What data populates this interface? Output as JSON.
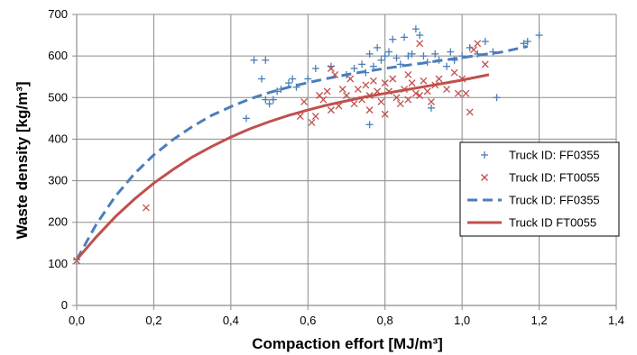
{
  "chart_data": {
    "type": "scatter",
    "xlabel": "Compaction effort  [MJ/m³]",
    "ylabel": "Waste density [kg/m³]",
    "xlim": [
      0,
      1.4
    ],
    "ylim": [
      0,
      700
    ],
    "xticks": [
      0.0,
      0.2,
      0.4,
      0.6,
      0.8,
      1.0,
      1.2,
      1.4
    ],
    "xtick_labels": [
      "0,0",
      "0,2",
      "0,4",
      "0,6",
      "0,8",
      "1,0",
      "1,2",
      "1,4"
    ],
    "yticks": [
      0,
      100,
      200,
      300,
      400,
      500,
      600,
      700
    ],
    "ytick_labels": [
      "0",
      "100",
      "200",
      "300",
      "400",
      "500",
      "600",
      "700"
    ],
    "grid": true,
    "legend_position": "right",
    "colors": {
      "blue": "#4a7ebb",
      "red": "#c0504d"
    },
    "series": [
      {
        "name": "Truck ID: FF0355",
        "kind": "scatter",
        "marker": "plus",
        "color": "#4a7ebb",
        "points": [
          [
            0.0,
            110
          ],
          [
            0.44,
            450
          ],
          [
            0.46,
            590
          ],
          [
            0.48,
            545
          ],
          [
            0.49,
            590
          ],
          [
            0.49,
            495
          ],
          [
            0.5,
            485
          ],
          [
            0.51,
            495
          ],
          [
            0.52,
            515
          ],
          [
            0.53,
            520
          ],
          [
            0.55,
            535
          ],
          [
            0.56,
            545
          ],
          [
            0.57,
            525
          ],
          [
            0.6,
            545
          ],
          [
            0.62,
            570
          ],
          [
            0.66,
            575
          ],
          [
            0.7,
            555
          ],
          [
            0.72,
            570
          ],
          [
            0.74,
            580
          ],
          [
            0.75,
            560
          ],
          [
            0.76,
            435
          ],
          [
            0.76,
            605
          ],
          [
            0.77,
            575
          ],
          [
            0.78,
            620
          ],
          [
            0.79,
            590
          ],
          [
            0.8,
            600
          ],
          [
            0.81,
            610
          ],
          [
            0.82,
            640
          ],
          [
            0.83,
            595
          ],
          [
            0.84,
            580
          ],
          [
            0.85,
            645
          ],
          [
            0.86,
            600
          ],
          [
            0.87,
            605
          ],
          [
            0.88,
            665
          ],
          [
            0.89,
            650
          ],
          [
            0.9,
            600
          ],
          [
            0.91,
            585
          ],
          [
            0.92,
            475
          ],
          [
            0.93,
            605
          ],
          [
            0.94,
            590
          ],
          [
            0.96,
            575
          ],
          [
            0.97,
            610
          ],
          [
            0.98,
            590
          ],
          [
            1.0,
            600
          ],
          [
            1.02,
            620
          ],
          [
            1.04,
            605
          ],
          [
            1.06,
            635
          ],
          [
            1.08,
            610
          ],
          [
            1.09,
            500
          ],
          [
            1.16,
            630
          ],
          [
            1.17,
            635
          ],
          [
            1.2,
            650
          ]
        ]
      },
      {
        "name": "Truck ID: FT0055",
        "kind": "scatter",
        "marker": "x",
        "color": "#c0504d",
        "points": [
          [
            0.0,
            108
          ],
          [
            0.18,
            235
          ],
          [
            0.58,
            455
          ],
          [
            0.59,
            490
          ],
          [
            0.61,
            440
          ],
          [
            0.62,
            455
          ],
          [
            0.63,
            505
          ],
          [
            0.64,
            495
          ],
          [
            0.65,
            515
          ],
          [
            0.66,
            470
          ],
          [
            0.66,
            570
          ],
          [
            0.67,
            555
          ],
          [
            0.68,
            480
          ],
          [
            0.69,
            520
          ],
          [
            0.7,
            505
          ],
          [
            0.71,
            545
          ],
          [
            0.72,
            485
          ],
          [
            0.73,
            520
          ],
          [
            0.74,
            495
          ],
          [
            0.75,
            530
          ],
          [
            0.76,
            505
          ],
          [
            0.76,
            470
          ],
          [
            0.77,
            540
          ],
          [
            0.78,
            515
          ],
          [
            0.79,
            490
          ],
          [
            0.8,
            460
          ],
          [
            0.8,
            535
          ],
          [
            0.81,
            515
          ],
          [
            0.82,
            545
          ],
          [
            0.83,
            500
          ],
          [
            0.84,
            485
          ],
          [
            0.85,
            520
          ],
          [
            0.86,
            555
          ],
          [
            0.86,
            495
          ],
          [
            0.87,
            535
          ],
          [
            0.88,
            510
          ],
          [
            0.89,
            630
          ],
          [
            0.89,
            505
          ],
          [
            0.9,
            540
          ],
          [
            0.91,
            515
          ],
          [
            0.92,
            490
          ],
          [
            0.93,
            530
          ],
          [
            0.94,
            545
          ],
          [
            0.96,
            520
          ],
          [
            0.98,
            560
          ],
          [
            0.99,
            510
          ],
          [
            1.0,
            545
          ],
          [
            1.01,
            510
          ],
          [
            1.02,
            465
          ],
          [
            1.03,
            615
          ],
          [
            1.04,
            630
          ],
          [
            1.06,
            580
          ]
        ]
      },
      {
        "name": "Truck ID: FF0355",
        "kind": "line",
        "dash": true,
        "color": "#4a7ebb",
        "points": [
          [
            0.0,
            110
          ],
          [
            0.05,
            194
          ],
          [
            0.1,
            262
          ],
          [
            0.15,
            317
          ],
          [
            0.2,
            362
          ],
          [
            0.25,
            399
          ],
          [
            0.3,
            430
          ],
          [
            0.35,
            457
          ],
          [
            0.4,
            478
          ],
          [
            0.45,
            497
          ],
          [
            0.5,
            512
          ],
          [
            0.55,
            525
          ],
          [
            0.6,
            536
          ],
          [
            0.65,
            546
          ],
          [
            0.7,
            555
          ],
          [
            0.75,
            563
          ],
          [
            0.8,
            570
          ],
          [
            0.85,
            577
          ],
          [
            0.9,
            583
          ],
          [
            0.95,
            590
          ],
          [
            1.0,
            596
          ],
          [
            1.05,
            603
          ],
          [
            1.1,
            609
          ],
          [
            1.17,
            623
          ]
        ]
      },
      {
        "name": "Truck ID FT0055",
        "kind": "line",
        "dash": false,
        "color": "#c0504d",
        "points": [
          [
            0.0,
            110
          ],
          [
            0.05,
            164
          ],
          [
            0.1,
            213
          ],
          [
            0.15,
            256
          ],
          [
            0.2,
            294
          ],
          [
            0.25,
            327
          ],
          [
            0.3,
            357
          ],
          [
            0.35,
            382
          ],
          [
            0.4,
            405
          ],
          [
            0.45,
            425
          ],
          [
            0.5,
            442
          ],
          [
            0.55,
            457
          ],
          [
            0.6,
            470
          ],
          [
            0.65,
            482
          ],
          [
            0.7,
            492
          ],
          [
            0.75,
            502
          ],
          [
            0.8,
            510
          ],
          [
            0.85,
            518
          ],
          [
            0.9,
            526
          ],
          [
            0.95,
            534
          ],
          [
            1.0,
            542
          ],
          [
            1.07,
            555
          ]
        ]
      }
    ]
  }
}
